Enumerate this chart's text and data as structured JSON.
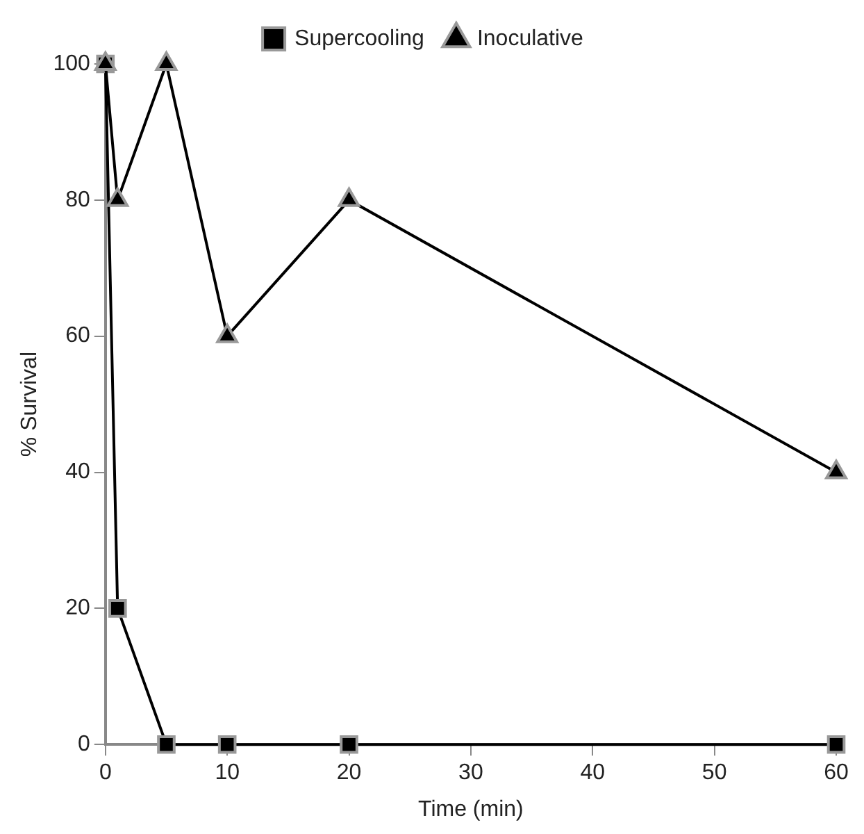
{
  "chart_data": {
    "type": "line",
    "xlabel": "Time (min)",
    "ylabel": "% Survival",
    "xlim": [
      0,
      60
    ],
    "xticks": [
      0,
      10,
      20,
      30,
      40,
      50,
      60
    ],
    "ylim": [
      0,
      100
    ],
    "yticks": [
      0,
      20,
      40,
      60,
      80,
      100
    ],
    "grid": false,
    "legend": "top",
    "line_style": "solid",
    "series": [
      {
        "name": "Supercooling",
        "color": "#000000",
        "marker": "square",
        "x": [
          0,
          1,
          5,
          10,
          20,
          60
        ],
        "values": [
          100,
          20,
          0,
          0,
          0,
          0
        ]
      },
      {
        "name": "Inoculative",
        "color": "#000000",
        "marker": "triangle",
        "x": [
          0,
          1,
          5,
          10,
          20,
          60
        ],
        "values": [
          100,
          80,
          100,
          60,
          80,
          40
        ]
      }
    ]
  }
}
